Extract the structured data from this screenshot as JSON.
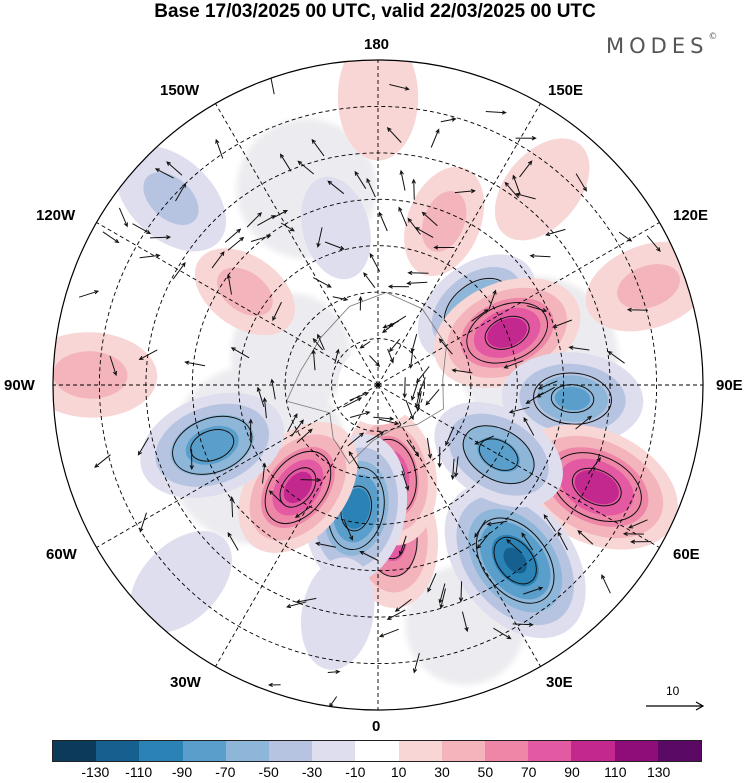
{
  "title": "Base 17/03/2025 00 UTC, valid 22/03/2025 00 UTC",
  "brand": {
    "name": "MODES",
    "mark": "©"
  },
  "longitude_labels": {
    "top": "180",
    "upper_left": "150W",
    "upper_right": "150E",
    "left_upper": "120W",
    "right_upper": "120E",
    "left": "90W",
    "right": "90E",
    "left_lower": "60W",
    "right_lower": "60E",
    "lower_left": "30W",
    "lower_right": "30E",
    "bottom": "0"
  },
  "reference_vector": {
    "label": "10"
  },
  "colorbar": {
    "colors": [
      "#0b3a5a",
      "#15608f",
      "#2a82b5",
      "#5a9fcb",
      "#8db6d8",
      "#b7c4e1",
      "#dedeee",
      "#ffffff",
      "#f9d6d6",
      "#f3b4bc",
      "#ee86a8",
      "#e35aa3",
      "#c3288e",
      "#8f0d79",
      "#5a0a65"
    ],
    "tick_labels": [
      "-130",
      "-110",
      "-90",
      "-70",
      "-50",
      "-30",
      "-10",
      "10",
      "30",
      "50",
      "70",
      "90",
      "110",
      "130"
    ]
  },
  "anomalies": [
    {
      "lon": 5,
      "lat": 57,
      "value": 80
    },
    {
      "lon": 8,
      "lat": 70,
      "value": 90
    },
    {
      "lon": 350,
      "lat": 63,
      "value": -100
    },
    {
      "lon": 322,
      "lat": 62,
      "value": 95
    },
    {
      "lon": 290,
      "lat": 52,
      "value": -85
    },
    {
      "lon": 268,
      "lat": 28,
      "value": 35
    },
    {
      "lon": 235,
      "lat": 55,
      "value": 35
    },
    {
      "lon": 228,
      "lat": 30,
      "value": -30
    },
    {
      "lon": 195,
      "lat": 55,
      "value": -25
    },
    {
      "lon": 180,
      "lat": 28,
      "value": 25
    },
    {
      "lon": 158,
      "lat": 52,
      "value": 35
    },
    {
      "lon": 128,
      "lat": 63,
      "value": -75
    },
    {
      "lon": 112,
      "lat": 60,
      "value": 100
    },
    {
      "lon": 86,
      "lat": 48,
      "value": -70
    },
    {
      "lon": 65,
      "lat": 38,
      "value": 100
    },
    {
      "lon": 38,
      "lat": 42,
      "value": -110
    },
    {
      "lon": 60,
      "lat": 60,
      "value": -80
    },
    {
      "lon": 350,
      "lat": 40,
      "value": -20
    },
    {
      "lon": 315,
      "lat": 30,
      "value": -20
    },
    {
      "lon": 110,
      "lat": 28,
      "value": 30
    },
    {
      "lon": 140,
      "lat": 35,
      "value": 20
    }
  ]
}
